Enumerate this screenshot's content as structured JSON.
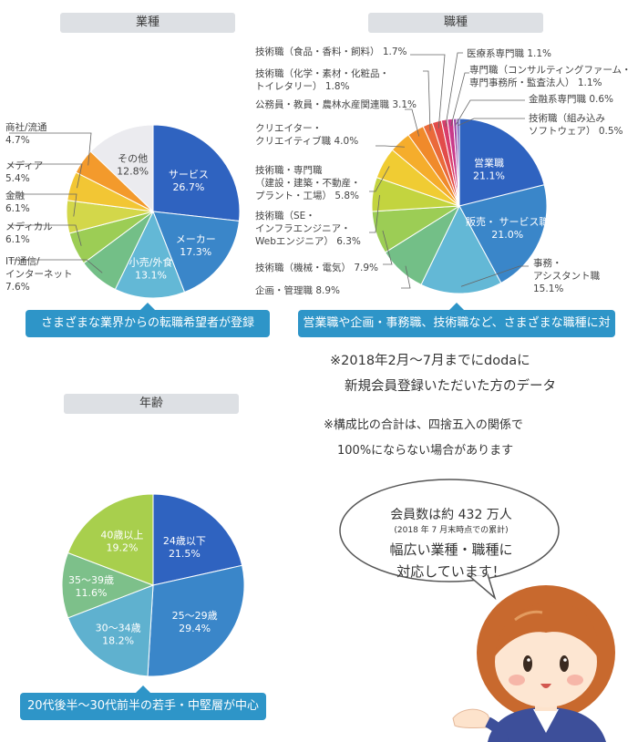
{
  "notes": {
    "period": "※2018年2月～7月までにdodaに",
    "period2": "新規会員登録いただいた方のデータ",
    "rounding": "※構成比の合計は、四捨五入の関係で",
    "rounding2": "100%にならない場合があります"
  },
  "bubble": {
    "members": "会員数は約 432 万人",
    "asof": "(2018 年 7 月末時点での累計)",
    "line1": "幅広い業種・職種に",
    "line2": "対応しています！"
  },
  "chart_data": [
    {
      "type": "pie",
      "title": "業種",
      "caption": "さまざまな業界からの転職希望者が登録",
      "slices": [
        {
          "label": "サービス",
          "value": 26.7,
          "pct": "26.7%",
          "color": "#2f63c0"
        },
        {
          "label": "メーカー",
          "value": 17.3,
          "pct": "17.3%",
          "color": "#3a86c9"
        },
        {
          "label": "小売/外食",
          "value": 13.1,
          "pct": "13.1%",
          "color": "#63b8d6"
        },
        {
          "label": "IT/通信/ インターネット",
          "value": 7.6,
          "pct": "7.6%",
          "color": "#73bf87"
        },
        {
          "label": "メディカル",
          "value": 6.1,
          "pct": "6.1%",
          "color": "#9ccd55"
        },
        {
          "label": "金融",
          "value": 6.1,
          "pct": "6.1%",
          "color": "#d3d74a"
        },
        {
          "label": "メディア",
          "value": 5.4,
          "pct": "5.4%",
          "color": "#f2c634"
        },
        {
          "label": "商社/流通",
          "value": 4.7,
          "pct": "4.7%",
          "color": "#f39a2c"
        },
        {
          "label": "その他",
          "value": 12.8,
          "pct": "12.8%",
          "color": "#ebebef"
        }
      ]
    },
    {
      "type": "pie",
      "title": "職種",
      "caption": "営業職や企画・事務職、技術職など、さまざまな職種に対応",
      "slices": [
        {
          "label": "営業職",
          "value": 21.1,
          "pct": "21.1%",
          "color": "#2f63c0"
        },
        {
          "label": "販売・ サービス職",
          "value": 21.0,
          "pct": "21.0%",
          "color": "#3a86c9"
        },
        {
          "label": "事務・ アシスタント職",
          "value": 15.1,
          "pct": "15.1%",
          "color": "#63b8d6"
        },
        {
          "label": "企画・管理職",
          "value": 8.9,
          "pct": "8.9%",
          "color": "#73bf87"
        },
        {
          "label": "技術職（機械・電気）",
          "value": 7.9,
          "pct": "7.9%",
          "color": "#9ccd55"
        },
        {
          "label": "技術職（SE・ インフラエンジニア・ Webエンジニア）",
          "value": 6.3,
          "pct": "6.3%",
          "color": "#c3d43f"
        },
        {
          "label": "技術職・専門職 （建設・建築・不動産・ プラント・工場）",
          "value": 5.8,
          "pct": "5.8%",
          "color": "#f0cc33"
        },
        {
          "label": "クリエイター・ クリエイティブ職",
          "value": 4.0,
          "pct": "4.0%",
          "color": "#f5ad2c"
        },
        {
          "label": "公務員・教員・農林水産関連職",
          "value": 3.1,
          "pct": "3.1%",
          "color": "#f08a2b"
        },
        {
          "label": "技術職（化学・素材・化粧品・ トイレタリー）",
          "value": 1.8,
          "pct": "1.8%",
          "color": "#ea6a3a"
        },
        {
          "label": "技術職（食品・香料・飼料）",
          "value": 1.7,
          "pct": "1.7%",
          "color": "#e24c4a"
        },
        {
          "label": "医療系専門職",
          "value": 1.1,
          "pct": "1.1%",
          "color": "#d93d6b"
        },
        {
          "label": "専門職（コンサルティングファーム・ 専門事務所・監査法人）",
          "value": 1.1,
          "pct": "1.1%",
          "color": "#c83a8a"
        },
        {
          "label": "金融系専門職",
          "value": 0.6,
          "pct": "0.6%",
          "color": "#9c4aa6"
        },
        {
          "label": "技術職（組み込み ソフトウェア）",
          "value": 0.5,
          "pct": "0.5%",
          "color": "#6a55b5"
        }
      ]
    },
    {
      "type": "pie",
      "title": "年齢",
      "caption": "20代後半～30代前半の若手・中堅層が中心",
      "slices": [
        {
          "label": "24歳以下",
          "value": 21.5,
          "pct": "21.5%",
          "color": "#2f63c0"
        },
        {
          "label": "25～29歳",
          "value": 29.4,
          "pct": "29.4%",
          "color": "#3a86c9"
        },
        {
          "label": "30～34歳",
          "value": 18.2,
          "pct": "18.2%",
          "color": "#5fb1cf"
        },
        {
          "label": "35～39歳",
          "value": 11.6,
          "pct": "11.6%",
          "color": "#7dc08a"
        },
        {
          "label": "40歳以上",
          "value": 19.2,
          "pct": "19.2%",
          "color": "#a8cf4d"
        }
      ]
    }
  ]
}
